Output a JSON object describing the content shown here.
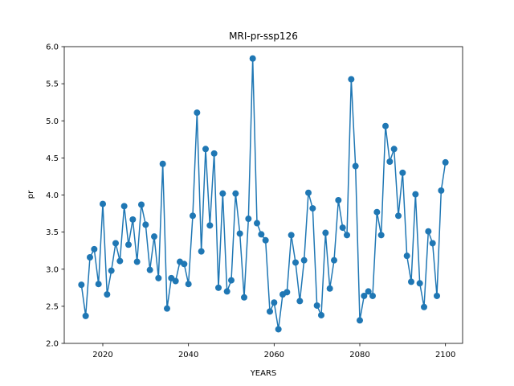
{
  "chart_data": {
    "type": "line",
    "title": "MRI-pr-ssp126",
    "xlabel": "YEARS",
    "ylabel": "pr",
    "xlim": [
      2011,
      2104
    ],
    "ylim": [
      2.0,
      6.0
    ],
    "xticks": [
      2020,
      2040,
      2060,
      2080,
      2100
    ],
    "yticks": [
      2.0,
      2.5,
      3.0,
      3.5,
      4.0,
      4.5,
      5.0,
      5.5,
      6.0
    ],
    "grid": false,
    "marker": "circle",
    "color": "#1f77b4",
    "series": [
      {
        "x": [
          2015,
          2016,
          2017,
          2018,
          2019,
          2020,
          2021,
          2022,
          2023,
          2024,
          2025,
          2026,
          2027,
          2028,
          2029,
          2030,
          2031,
          2032,
          2033,
          2034,
          2035,
          2036,
          2037,
          2038,
          2039,
          2040,
          2041,
          2042,
          2043,
          2044,
          2045,
          2046,
          2047,
          2048,
          2049,
          2050,
          2051,
          2052,
          2053,
          2054,
          2055,
          2056,
          2057,
          2058,
          2059,
          2060,
          2061,
          2062,
          2063,
          2064,
          2065,
          2066,
          2067,
          2068,
          2069,
          2070,
          2071,
          2072,
          2073,
          2074,
          2075,
          2076,
          2077,
          2078,
          2079,
          2080,
          2081,
          2082,
          2083,
          2084,
          2085,
          2086,
          2087,
          2088,
          2089,
          2090,
          2091,
          2092,
          2093,
          2094,
          2095,
          2096,
          2097,
          2098,
          2099,
          2100
        ],
        "values": [
          2.79,
          2.37,
          3.16,
          3.27,
          2.8,
          3.88,
          2.66,
          2.98,
          3.35,
          3.11,
          3.85,
          3.33,
          3.67,
          3.1,
          3.87,
          3.6,
          2.99,
          3.44,
          2.88,
          4.42,
          2.47,
          2.88,
          2.84,
          3.1,
          3.07,
          2.8,
          3.72,
          5.11,
          3.24,
          4.62,
          3.59,
          4.56,
          2.75,
          4.02,
          2.7,
          2.85,
          4.02,
          3.48,
          2.62,
          3.68,
          5.84,
          3.62,
          3.47,
          3.39,
          2.43,
          2.55,
          2.19,
          2.66,
          2.69,
          3.46,
          3.09,
          2.57,
          3.12,
          4.03,
          3.82,
          2.51,
          2.38,
          3.49,
          2.74,
          3.12,
          3.93,
          3.56,
          3.46,
          5.56,
          4.39,
          2.31,
          2.64,
          2.7,
          2.64,
          3.77,
          3.46,
          4.93,
          4.45,
          4.62,
          3.72,
          4.3,
          3.18,
          2.83,
          4.01,
          2.81,
          2.49,
          3.51,
          3.35,
          2.64,
          4.06,
          4.44
        ]
      }
    ]
  }
}
